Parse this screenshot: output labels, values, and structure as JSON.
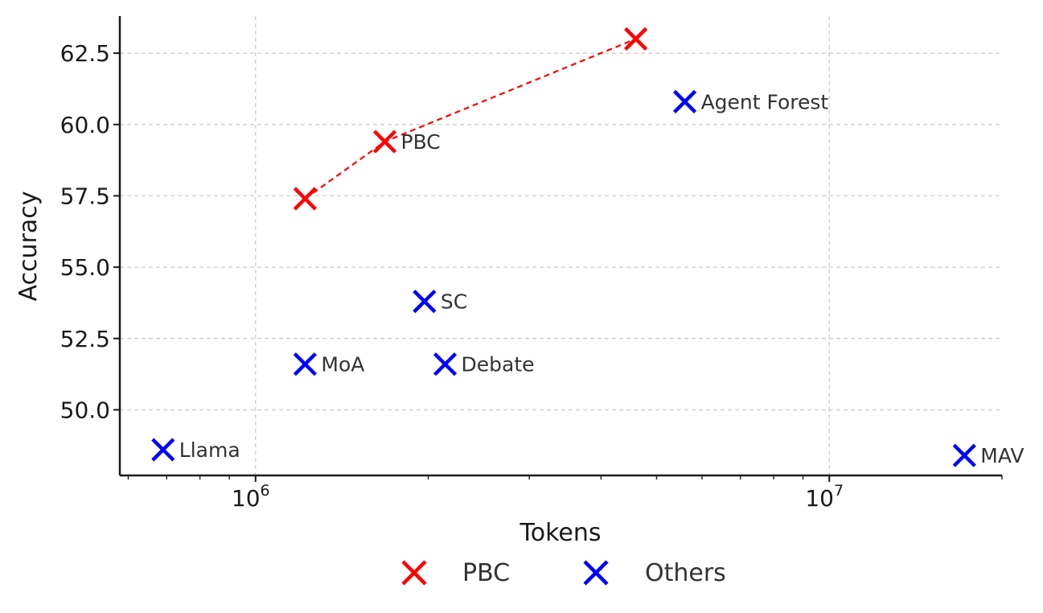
{
  "chart_data": {
    "type": "scatter",
    "xlabel": "Tokens",
    "ylabel": "Accuracy",
    "xscale": "log",
    "xlim": [
      580000,
      20000000
    ],
    "ylim": [
      47.7,
      63.8
    ],
    "x_ticks": [
      {
        "value": 1000000,
        "base": "10",
        "exp": "6"
      },
      {
        "value": 10000000,
        "base": "10",
        "exp": "7"
      }
    ],
    "y_ticks": [
      {
        "value": 50.0,
        "label": "50.0"
      },
      {
        "value": 52.5,
        "label": "52.5"
      },
      {
        "value": 55.0,
        "label": "55.0"
      },
      {
        "value": 57.5,
        "label": "57.5"
      },
      {
        "value": 60.0,
        "label": "60.0"
      },
      {
        "value": 62.5,
        "label": "62.5"
      }
    ],
    "grid": true,
    "legend_position": "bottom",
    "series": [
      {
        "name": "PBC",
        "color": "#ff0000",
        "marker": "x",
        "connected": true,
        "line_style": "dashed",
        "points": [
          {
            "x": 1220000,
            "y": 57.4,
            "label": ""
          },
          {
            "x": 1680000,
            "y": 59.4,
            "label": "PBC"
          },
          {
            "x": 4600000,
            "y": 63.0,
            "label": ""
          }
        ]
      },
      {
        "name": "Others",
        "color": "#0000ff",
        "marker": "x",
        "connected": false,
        "points": [
          {
            "x": 5600000,
            "y": 60.8,
            "label": "Agent Forest"
          },
          {
            "x": 1970000,
            "y": 53.8,
            "label": "SC"
          },
          {
            "x": 1220000,
            "y": 51.6,
            "label": "MoA"
          },
          {
            "x": 2140000,
            "y": 51.6,
            "label": "Debate"
          },
          {
            "x": 690000,
            "y": 48.6,
            "label": "Llama"
          },
          {
            "x": 17200000,
            "y": 48.4,
            "label": "MAV"
          }
        ]
      }
    ]
  }
}
